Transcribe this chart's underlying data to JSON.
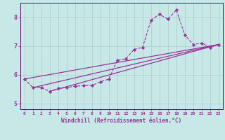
{
  "xlabel": "Windchill (Refroidissement éolien,°C)",
  "background_color": "#c8e8e8",
  "grid_color": "#a8cccc",
  "line_color": "#993399",
  "xlim": [
    -0.5,
    23.5
  ],
  "ylim": [
    4.8,
    8.5
  ],
  "xticks": [
    0,
    1,
    2,
    3,
    4,
    5,
    6,
    7,
    8,
    9,
    10,
    11,
    12,
    13,
    14,
    15,
    16,
    17,
    18,
    19,
    20,
    21,
    22,
    23
  ],
  "yticks": [
    5,
    6,
    7,
    8
  ],
  "series": [
    [
      0,
      5.85
    ],
    [
      1,
      5.55
    ],
    [
      2,
      5.55
    ],
    [
      3,
      5.42
    ],
    [
      4,
      5.52
    ],
    [
      5,
      5.55
    ],
    [
      6,
      5.6
    ],
    [
      7,
      5.62
    ],
    [
      8,
      5.63
    ],
    [
      9,
      5.75
    ],
    [
      10,
      5.85
    ],
    [
      11,
      6.5
    ],
    [
      12,
      6.55
    ],
    [
      13,
      6.88
    ],
    [
      14,
      6.95
    ],
    [
      15,
      7.9
    ],
    [
      16,
      8.1
    ],
    [
      17,
      7.93
    ],
    [
      18,
      8.25
    ],
    [
      19,
      7.38
    ],
    [
      20,
      7.05
    ],
    [
      21,
      7.1
    ],
    [
      22,
      6.95
    ],
    [
      23,
      7.05
    ]
  ],
  "trend_lines": [
    [
      [
        0,
        5.85
      ],
      [
        23,
        7.05
      ]
    ],
    [
      [
        1,
        5.55
      ],
      [
        23,
        7.05
      ]
    ],
    [
      [
        3,
        5.42
      ],
      [
        23,
        7.05
      ]
    ]
  ]
}
